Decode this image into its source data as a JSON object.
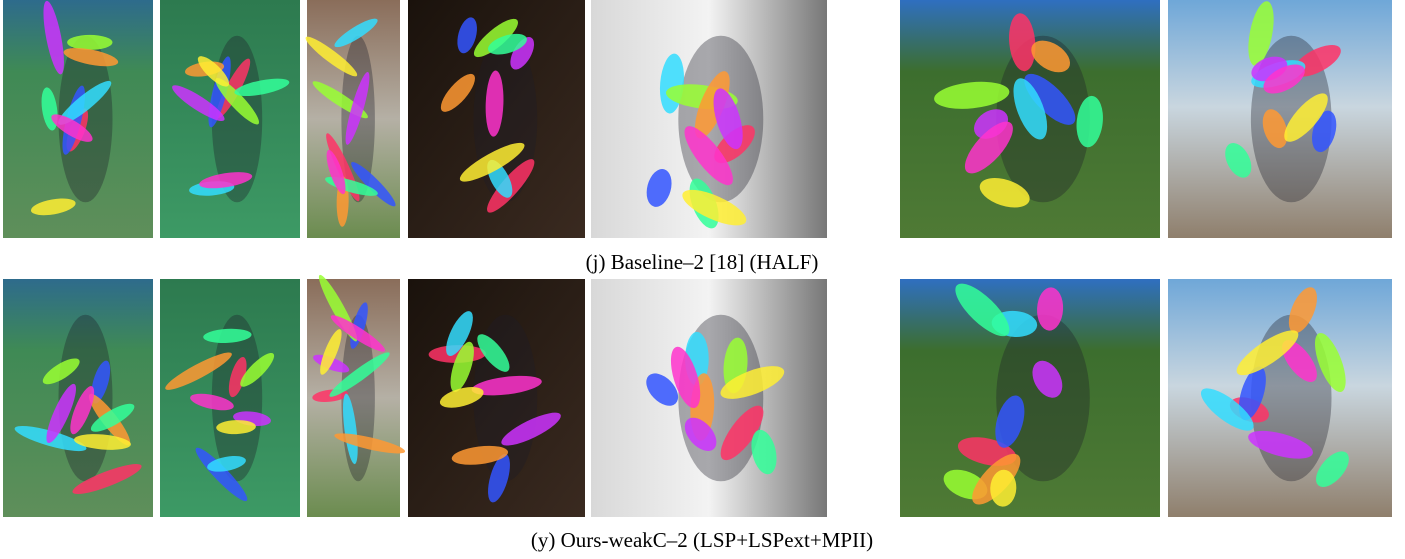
{
  "figure": {
    "rows": [
      {
        "caption": "(j) Baseline–2 [18] (HALF)"
      },
      {
        "caption": "(y) Ours-weakC–2 (LSP+LSPext+MPII)"
      }
    ]
  }
}
